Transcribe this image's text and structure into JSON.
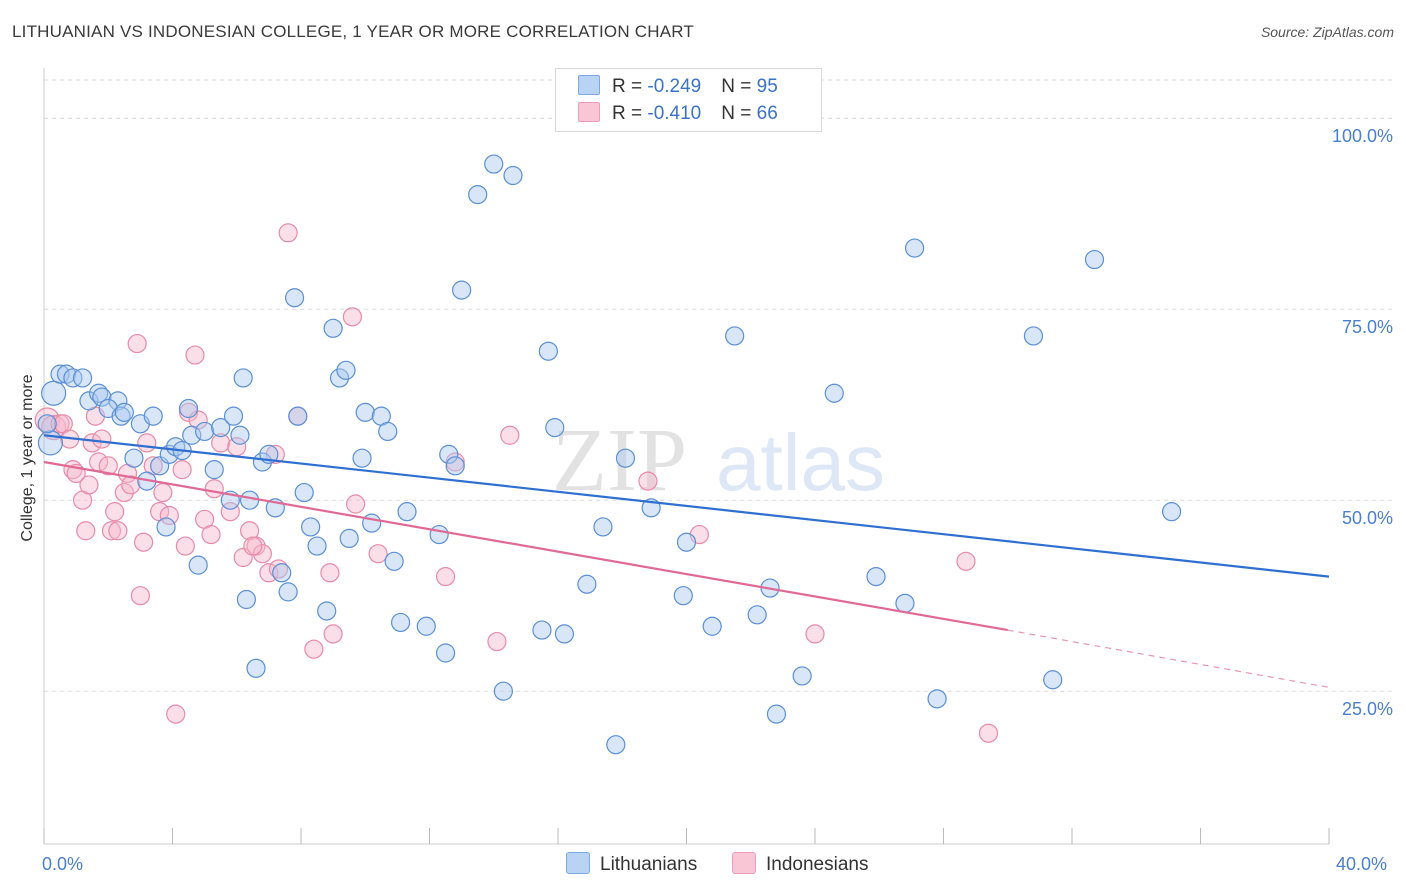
{
  "title": "LITHUANIAN VS INDONESIAN COLLEGE, 1 YEAR OR MORE CORRELATION CHART",
  "source": "Source: ZipAtlas.com",
  "watermark": {
    "zip": "ZIP",
    "atlas": "atlas"
  },
  "legend": {
    "rows": [
      {
        "r_label": "R = ",
        "r_value": "-0.249",
        "n_label": "N = ",
        "n_value": "95"
      },
      {
        "r_label": "R = ",
        "r_value": "-0.410",
        "n_label": "N = ",
        "n_value": "66"
      }
    ]
  },
  "bottom_legend": {
    "lithuanians": "Lithuanians",
    "indonesians": "Indonesians"
  },
  "colors": {
    "blue_fill": "#a9c8f0",
    "blue_stroke": "#5b8fd6",
    "blue_line": "#2f6fd0",
    "pink_fill": "#f6b8cb",
    "pink_stroke": "#e88aa8",
    "pink_line": "#e06a95",
    "grid": "#dcdcdc",
    "tick_text": "#4a7fcf"
  },
  "chart_data": {
    "type": "scatter",
    "title": "LITHUANIAN VS INDONESIAN COLLEGE, 1 YEAR OR MORE CORRELATION CHART",
    "xlabel": "",
    "ylabel": "College, 1 year or more",
    "xlim": [
      0,
      40
    ],
    "ylim": [
      5,
      105
    ],
    "x_tick_labels": [
      "0.0%",
      "40.0%"
    ],
    "y_ticks": [
      25,
      50,
      75,
      100
    ],
    "y_tick_labels": [
      "25.0%",
      "50.0%",
      "75.0%",
      "100.0%"
    ],
    "grid": "horizontal dashed",
    "legend_position": "top-center",
    "series": [
      {
        "name": "Lithuanians",
        "r": -0.249,
        "n": 95,
        "trend": {
          "x": [
            0,
            40
          ],
          "y": [
            58.5,
            40
          ]
        },
        "points": [
          [
            0.2,
            57.5
          ],
          [
            0.3,
            64
          ],
          [
            0.5,
            66.5
          ],
          [
            0.7,
            66.5
          ],
          [
            0.9,
            66
          ],
          [
            1.2,
            66
          ],
          [
            1.4,
            63
          ],
          [
            1.7,
            64
          ],
          [
            1.8,
            63.5
          ],
          [
            2.3,
            63
          ],
          [
            2.0,
            62
          ],
          [
            2.4,
            61
          ],
          [
            2.5,
            61.5
          ],
          [
            3.0,
            60
          ],
          [
            2.8,
            55.5
          ],
          [
            3.2,
            52.5
          ],
          [
            3.4,
            61
          ],
          [
            3.6,
            54.5
          ],
          [
            3.8,
            46.5
          ],
          [
            3.9,
            56
          ],
          [
            4.1,
            57
          ],
          [
            4.3,
            56.5
          ],
          [
            4.5,
            62
          ],
          [
            4.6,
            58.5
          ],
          [
            4.8,
            41.5
          ],
          [
            5.0,
            59
          ],
          [
            5.3,
            54
          ],
          [
            5.5,
            59.5
          ],
          [
            5.8,
            50
          ],
          [
            5.9,
            61
          ],
          [
            6.1,
            58.5
          ],
          [
            6.2,
            66
          ],
          [
            6.3,
            37
          ],
          [
            6.4,
            50
          ],
          [
            6.6,
            28
          ],
          [
            6.8,
            55
          ],
          [
            7.0,
            56
          ],
          [
            7.2,
            49
          ],
          [
            7.4,
            40.5
          ],
          [
            7.6,
            38
          ],
          [
            7.8,
            76.5
          ],
          [
            7.9,
            61
          ],
          [
            8.1,
            51
          ],
          [
            8.3,
            46.5
          ],
          [
            8.5,
            44
          ],
          [
            8.8,
            35.5
          ],
          [
            9.0,
            72.5
          ],
          [
            9.2,
            66
          ],
          [
            9.4,
            67
          ],
          [
            9.5,
            45
          ],
          [
            9.9,
            55.5
          ],
          [
            10.0,
            61.5
          ],
          [
            10.2,
            47
          ],
          [
            10.5,
            61
          ],
          [
            10.7,
            59
          ],
          [
            10.9,
            42
          ],
          [
            11.1,
            34
          ],
          [
            11.3,
            48.5
          ],
          [
            11.9,
            33.5
          ],
          [
            12.3,
            45.5
          ],
          [
            12.5,
            30
          ],
          [
            12.6,
            56
          ],
          [
            12.8,
            54.5
          ],
          [
            13.0,
            77.5
          ],
          [
            13.5,
            90
          ],
          [
            14.0,
            94
          ],
          [
            14.3,
            25
          ],
          [
            14.6,
            92.5
          ],
          [
            15.5,
            33
          ],
          [
            15.7,
            69.5
          ],
          [
            15.9,
            59.5
          ],
          [
            16.2,
            32.5
          ],
          [
            16.9,
            39
          ],
          [
            17.4,
            46.5
          ],
          [
            17.8,
            18
          ],
          [
            18.1,
            55.5
          ],
          [
            18.9,
            49
          ],
          [
            19.9,
            37.5
          ],
          [
            20.0,
            44.5
          ],
          [
            20.8,
            33.5
          ],
          [
            21.5,
            71.5
          ],
          [
            22.2,
            35
          ],
          [
            22.8,
            22
          ],
          [
            22.6,
            38.5
          ],
          [
            23.6,
            27
          ],
          [
            24.6,
            64
          ],
          [
            25.9,
            40
          ],
          [
            26.8,
            36.5
          ],
          [
            27.1,
            83
          ],
          [
            27.8,
            24
          ],
          [
            30.8,
            71.5
          ],
          [
            31.4,
            26.5
          ],
          [
            32.7,
            81.5
          ],
          [
            35.1,
            48.5
          ],
          [
            0.1,
            60
          ]
        ]
      },
      {
        "name": "Indonesians",
        "r": -0.41,
        "n": 66,
        "trend": {
          "x": [
            0,
            30
          ],
          "y": [
            55,
            33
          ]
        },
        "trend_ext": {
          "x": [
            30,
            40
          ],
          "y": [
            33,
            25.5
          ]
        },
        "points": [
          [
            0.1,
            60.5
          ],
          [
            0.3,
            59.5
          ],
          [
            0.5,
            60
          ],
          [
            0.6,
            60
          ],
          [
            0.8,
            58
          ],
          [
            0.9,
            54
          ],
          [
            1.0,
            53.5
          ],
          [
            1.2,
            50
          ],
          [
            1.4,
            52
          ],
          [
            1.5,
            57.5
          ],
          [
            1.6,
            61
          ],
          [
            1.7,
            55
          ],
          [
            1.8,
            58
          ],
          [
            2.0,
            54.5
          ],
          [
            2.1,
            46
          ],
          [
            2.2,
            48.5
          ],
          [
            2.3,
            46
          ],
          [
            2.5,
            51
          ],
          [
            2.6,
            53.5
          ],
          [
            2.7,
            52
          ],
          [
            2.9,
            70.5
          ],
          [
            3.0,
            37.5
          ],
          [
            3.1,
            44.5
          ],
          [
            3.2,
            57.5
          ],
          [
            3.4,
            54.5
          ],
          [
            3.6,
            48.5
          ],
          [
            3.7,
            51
          ],
          [
            3.9,
            48
          ],
          [
            4.1,
            22
          ],
          [
            4.3,
            54
          ],
          [
            4.4,
            44
          ],
          [
            4.5,
            61.5
          ],
          [
            4.7,
            69
          ],
          [
            4.8,
            60.5
          ],
          [
            5.0,
            47.5
          ],
          [
            5.2,
            45.5
          ],
          [
            5.3,
            51.5
          ],
          [
            5.5,
            57.5
          ],
          [
            5.8,
            48.5
          ],
          [
            6.0,
            57
          ],
          [
            6.2,
            42.5
          ],
          [
            6.4,
            46
          ],
          [
            6.6,
            44
          ],
          [
            6.8,
            43
          ],
          [
            7.0,
            40.5
          ],
          [
            7.3,
            41
          ],
          [
            7.6,
            85
          ],
          [
            7.9,
            61
          ],
          [
            8.4,
            30.5
          ],
          [
            8.9,
            40.5
          ],
          [
            9.0,
            32.5
          ],
          [
            9.6,
            74
          ],
          [
            9.7,
            49.5
          ],
          [
            10.4,
            43
          ],
          [
            12.5,
            40
          ],
          [
            12.8,
            55
          ],
          [
            14.1,
            31.5
          ],
          [
            14.5,
            58.5
          ],
          [
            18.8,
            52.5
          ],
          [
            20.4,
            45.5
          ],
          [
            24.0,
            32.5
          ],
          [
            28.7,
            42
          ],
          [
            29.4,
            19.5
          ],
          [
            6.5,
            44
          ],
          [
            7.2,
            56
          ],
          [
            1.3,
            46
          ]
        ]
      }
    ]
  }
}
